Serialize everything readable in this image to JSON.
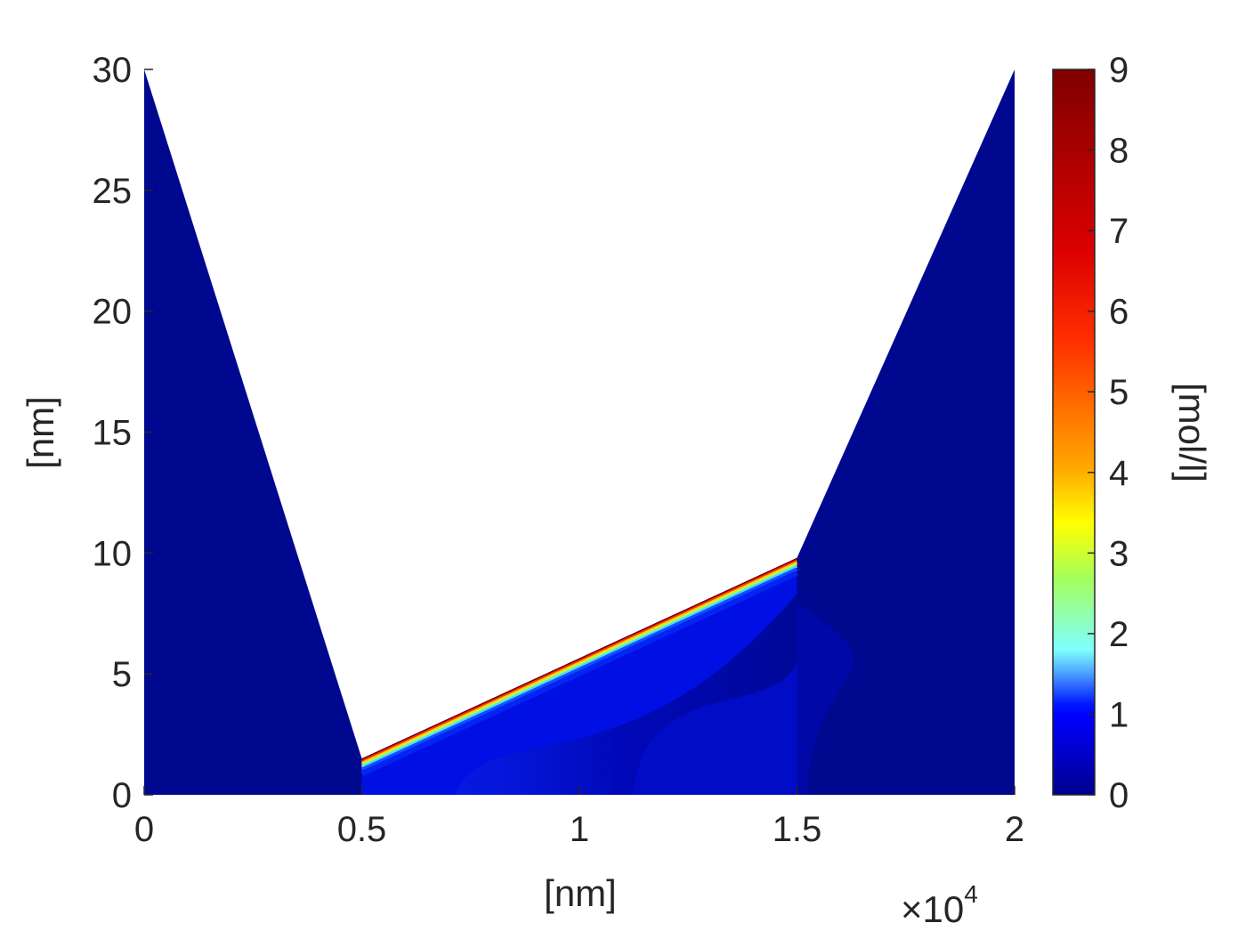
{
  "chart_data": {
    "type": "heatmap",
    "title": "",
    "xlabel": "[nm]",
    "ylabel": "[nm]",
    "x_multiplier_label": "×10",
    "x_multiplier_exponent": "4",
    "x_scale": 10000,
    "xlim": [
      0,
      20000
    ],
    "ylim": [
      0,
      30
    ],
    "x_ticks": [
      0,
      5000,
      10000,
      15000,
      20000
    ],
    "x_tick_labels": [
      "0",
      "0.5",
      "1",
      "1.5",
      "2"
    ],
    "y_ticks": [
      0,
      5,
      10,
      15,
      20,
      25,
      30
    ],
    "y_tick_labels": [
      "0",
      "5",
      "10",
      "15",
      "20",
      "25",
      "30"
    ],
    "domain_boundary": [
      [
        0,
        30
      ],
      [
        5000,
        1.5
      ],
      [
        15000,
        9.8
      ],
      [
        20000,
        30
      ],
      [
        20000,
        0
      ],
      [
        0,
        0
      ]
    ],
    "high_concentration_edge": [
      [
        5000,
        1.5
      ],
      [
        15000,
        9.8
      ]
    ],
    "colormap": "jet",
    "colorbar": {
      "label": "[mol/l]",
      "range": [
        0,
        9
      ],
      "ticks": [
        0,
        1,
        2,
        3,
        4,
        5,
        6,
        7,
        8,
        9
      ],
      "tick_labels": [
        "0",
        "1",
        "2",
        "3",
        "4",
        "5",
        "6",
        "7",
        "8",
        "9"
      ],
      "location": "right"
    },
    "grid": false
  }
}
